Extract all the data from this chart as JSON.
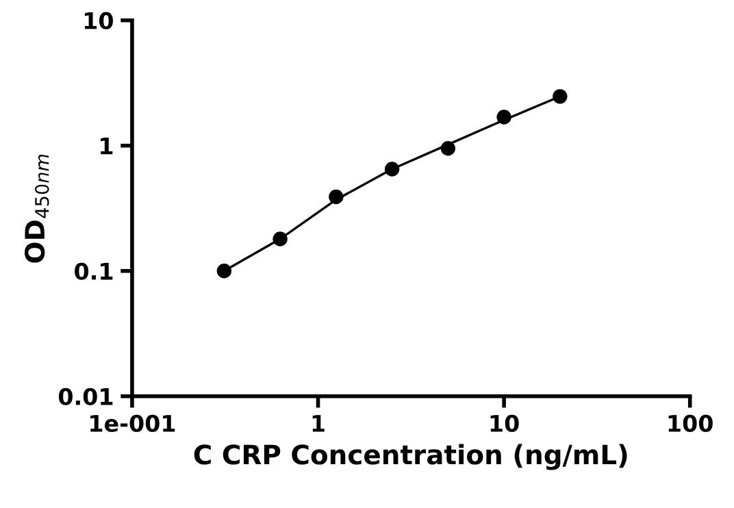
{
  "chart_data": {
    "type": "scatter",
    "xlabel": "C CRP Concentration (ng/mL)",
    "ylabel": "OD$_{450nm}$",
    "log": "xy",
    "marker": "circle",
    "grid": false,
    "legend": false,
    "xlim": [
      0.1,
      100
    ],
    "xticks": [
      {
        "value": 0.1,
        "label": "1e-001"
      },
      1,
      10,
      100
    ],
    "ylim": [
      0.01,
      10
    ],
    "yticks": [
      0.01,
      0.1,
      1,
      10
    ],
    "series": [
      {
        "color": "#000000",
        "x": [
          0.3125,
          0.625,
          1.25,
          2.5,
          5,
          10,
          20
        ],
        "values": [
          0.1,
          0.18,
          0.39,
          0.65,
          0.95,
          1.69,
          2.47
        ]
      },
      {
        "type": "line",
        "color": "#000000",
        "marker": "none",
        "line_style": "solid",
        "x": [
          0.3125,
          0.625,
          1.25,
          2.5,
          5,
          10,
          20
        ],
        "values": [
          0.1,
          0.18,
          0.37,
          0.65,
          1.02,
          1.6,
          2.47
        ]
      }
    ]
  }
}
